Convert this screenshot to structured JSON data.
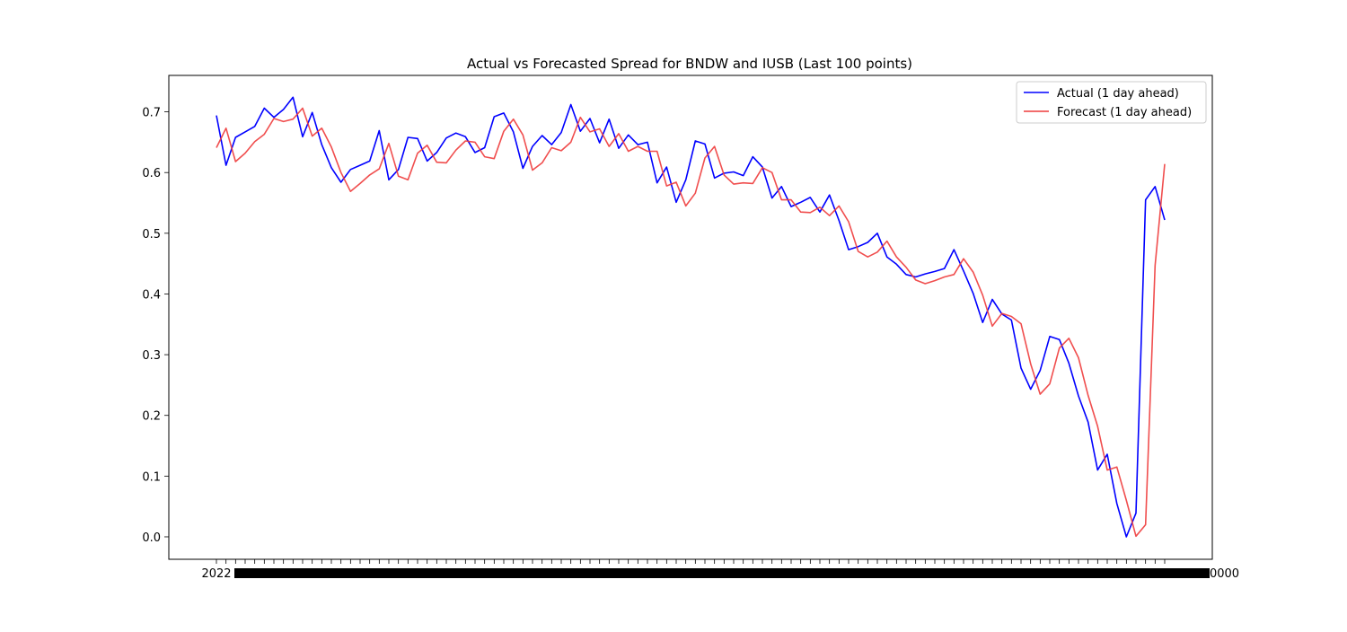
{
  "chart_data": {
    "type": "line",
    "title": "Actual vs Forecasted Spread for BNDW and IUSB (Last 100 points)",
    "xlabel": "",
    "ylabel": "",
    "x_tick_text_left": "2022",
    "x_tick_text_right": "00000000",
    "ylim": [
      -0.037,
      0.76
    ],
    "yticks": [
      0.0,
      0.1,
      0.2,
      0.3,
      0.4,
      0.5,
      0.6,
      0.7
    ],
    "ytick_labels": [
      "0.0",
      "0.1",
      "0.2",
      "0.3",
      "0.4",
      "0.5",
      "0.6",
      "0.7"
    ],
    "grid": false,
    "legend": {
      "position": "top-right"
    },
    "series": [
      {
        "name": "Actual (1 day ahead)",
        "color": "#0000ff",
        "values": [
          0.694,
          0.612,
          0.658,
          0.667,
          0.676,
          0.706,
          0.691,
          0.704,
          0.724,
          0.659,
          0.699,
          0.646,
          0.608,
          0.584,
          0.605,
          0.612,
          0.619,
          0.669,
          0.588,
          0.605,
          0.658,
          0.656,
          0.619,
          0.633,
          0.657,
          0.665,
          0.659,
          0.633,
          0.641,
          0.692,
          0.698,
          0.667,
          0.607,
          0.643,
          0.661,
          0.646,
          0.666,
          0.712,
          0.668,
          0.689,
          0.649,
          0.688,
          0.64,
          0.662,
          0.646,
          0.65,
          0.583,
          0.609,
          0.551,
          0.588,
          0.652,
          0.647,
          0.591,
          0.599,
          0.601,
          0.595,
          0.626,
          0.609,
          0.558,
          0.577,
          0.544,
          0.551,
          0.559,
          0.535,
          0.563,
          0.521,
          0.473,
          0.478,
          0.485,
          0.5,
          0.461,
          0.449,
          0.432,
          0.428,
          0.433,
          0.437,
          0.442,
          0.473,
          0.438,
          0.401,
          0.353,
          0.391,
          0.367,
          0.357,
          0.278,
          0.243,
          0.274,
          0.33,
          0.325,
          0.286,
          0.232,
          0.189,
          0.11,
          0.136,
          0.055,
          0.0,
          0.039,
          0.555,
          0.577,
          0.522
        ]
      },
      {
        "name": "Forecast (1 day ahead)",
        "color": "#ee3b3b",
        "values": [
          0.641,
          0.673,
          0.618,
          0.632,
          0.651,
          0.663,
          0.689,
          0.684,
          0.688,
          0.706,
          0.66,
          0.673,
          0.642,
          0.6,
          0.569,
          0.582,
          0.596,
          0.606,
          0.648,
          0.594,
          0.588,
          0.632,
          0.645,
          0.617,
          0.616,
          0.637,
          0.652,
          0.65,
          0.626,
          0.623,
          0.668,
          0.688,
          0.662,
          0.604,
          0.616,
          0.641,
          0.636,
          0.65,
          0.691,
          0.667,
          0.672,
          0.643,
          0.664,
          0.635,
          0.643,
          0.635,
          0.635,
          0.578,
          0.584,
          0.545,
          0.566,
          0.624,
          0.643,
          0.596,
          0.581,
          0.583,
          0.582,
          0.608,
          0.6,
          0.555,
          0.555,
          0.535,
          0.534,
          0.543,
          0.529,
          0.545,
          0.519,
          0.47,
          0.461,
          0.469,
          0.487,
          0.461,
          0.444,
          0.423,
          0.417,
          0.422,
          0.428,
          0.432,
          0.458,
          0.436,
          0.398,
          0.347,
          0.368,
          0.363,
          0.351,
          0.285,
          0.235,
          0.252,
          0.311,
          0.327,
          0.295,
          0.233,
          0.182,
          0.11,
          0.115,
          0.06,
          0.001,
          0.02,
          0.447,
          0.614
        ]
      }
    ]
  }
}
